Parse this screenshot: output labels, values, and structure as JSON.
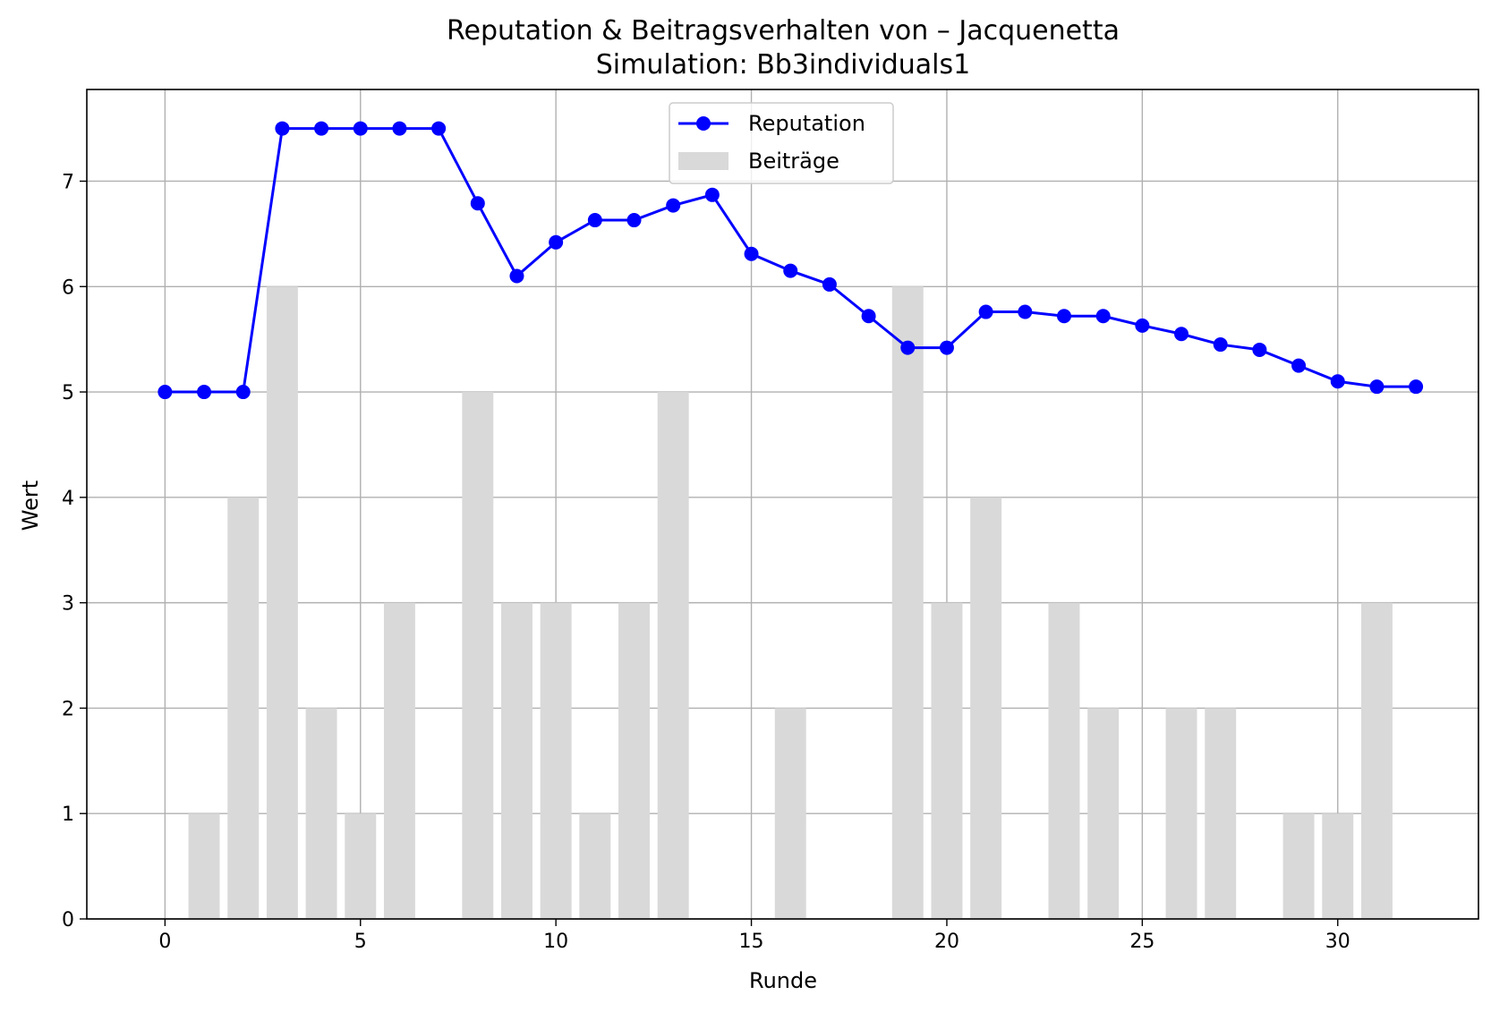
{
  "chart_data": {
    "type": "line",
    "title": "Reputation & Beitragsverhalten von – Jacquenetta",
    "subtitle": "Simulation: Bb3individuals1",
    "xlabel": "Runde",
    "ylabel": "Wert",
    "xlim": [
      -2,
      33.6
    ],
    "ylim": [
      0,
      7.87
    ],
    "xticks": [
      0,
      5,
      10,
      15,
      20,
      25,
      30
    ],
    "yticks": [
      0,
      1,
      2,
      3,
      4,
      5,
      6,
      7
    ],
    "grid": true,
    "legend_position": "top-center",
    "x": [
      0,
      1,
      2,
      3,
      4,
      5,
      6,
      7,
      8,
      9,
      10,
      11,
      12,
      13,
      14,
      15,
      16,
      17,
      18,
      19,
      20,
      21,
      22,
      23,
      24,
      25,
      26,
      27,
      28,
      29,
      30,
      31,
      32
    ],
    "series": [
      {
        "name": "Reputation",
        "kind": "line",
        "marker": "circle",
        "color": "#0000ff",
        "values": [
          5.0,
          5.0,
          5.0,
          7.5,
          7.5,
          7.5,
          7.5,
          7.5,
          6.79,
          6.1,
          6.42,
          6.63,
          6.63,
          6.77,
          6.87,
          6.31,
          6.15,
          6.02,
          5.72,
          5.42,
          5.42,
          5.76,
          5.76,
          5.72,
          5.72,
          5.63,
          5.55,
          5.45,
          5.4,
          5.25,
          5.1,
          5.05,
          5.05
        ]
      },
      {
        "name": "Beiträge",
        "kind": "bar",
        "color": "#d9d9d9",
        "values": [
          0,
          1,
          4,
          6,
          2,
          1,
          3,
          0,
          5,
          3,
          3,
          1,
          3,
          5,
          0,
          0,
          2,
          0,
          0,
          6,
          3,
          4,
          0,
          3,
          2,
          0,
          2,
          2,
          0,
          1,
          1,
          3,
          0
        ]
      }
    ]
  }
}
